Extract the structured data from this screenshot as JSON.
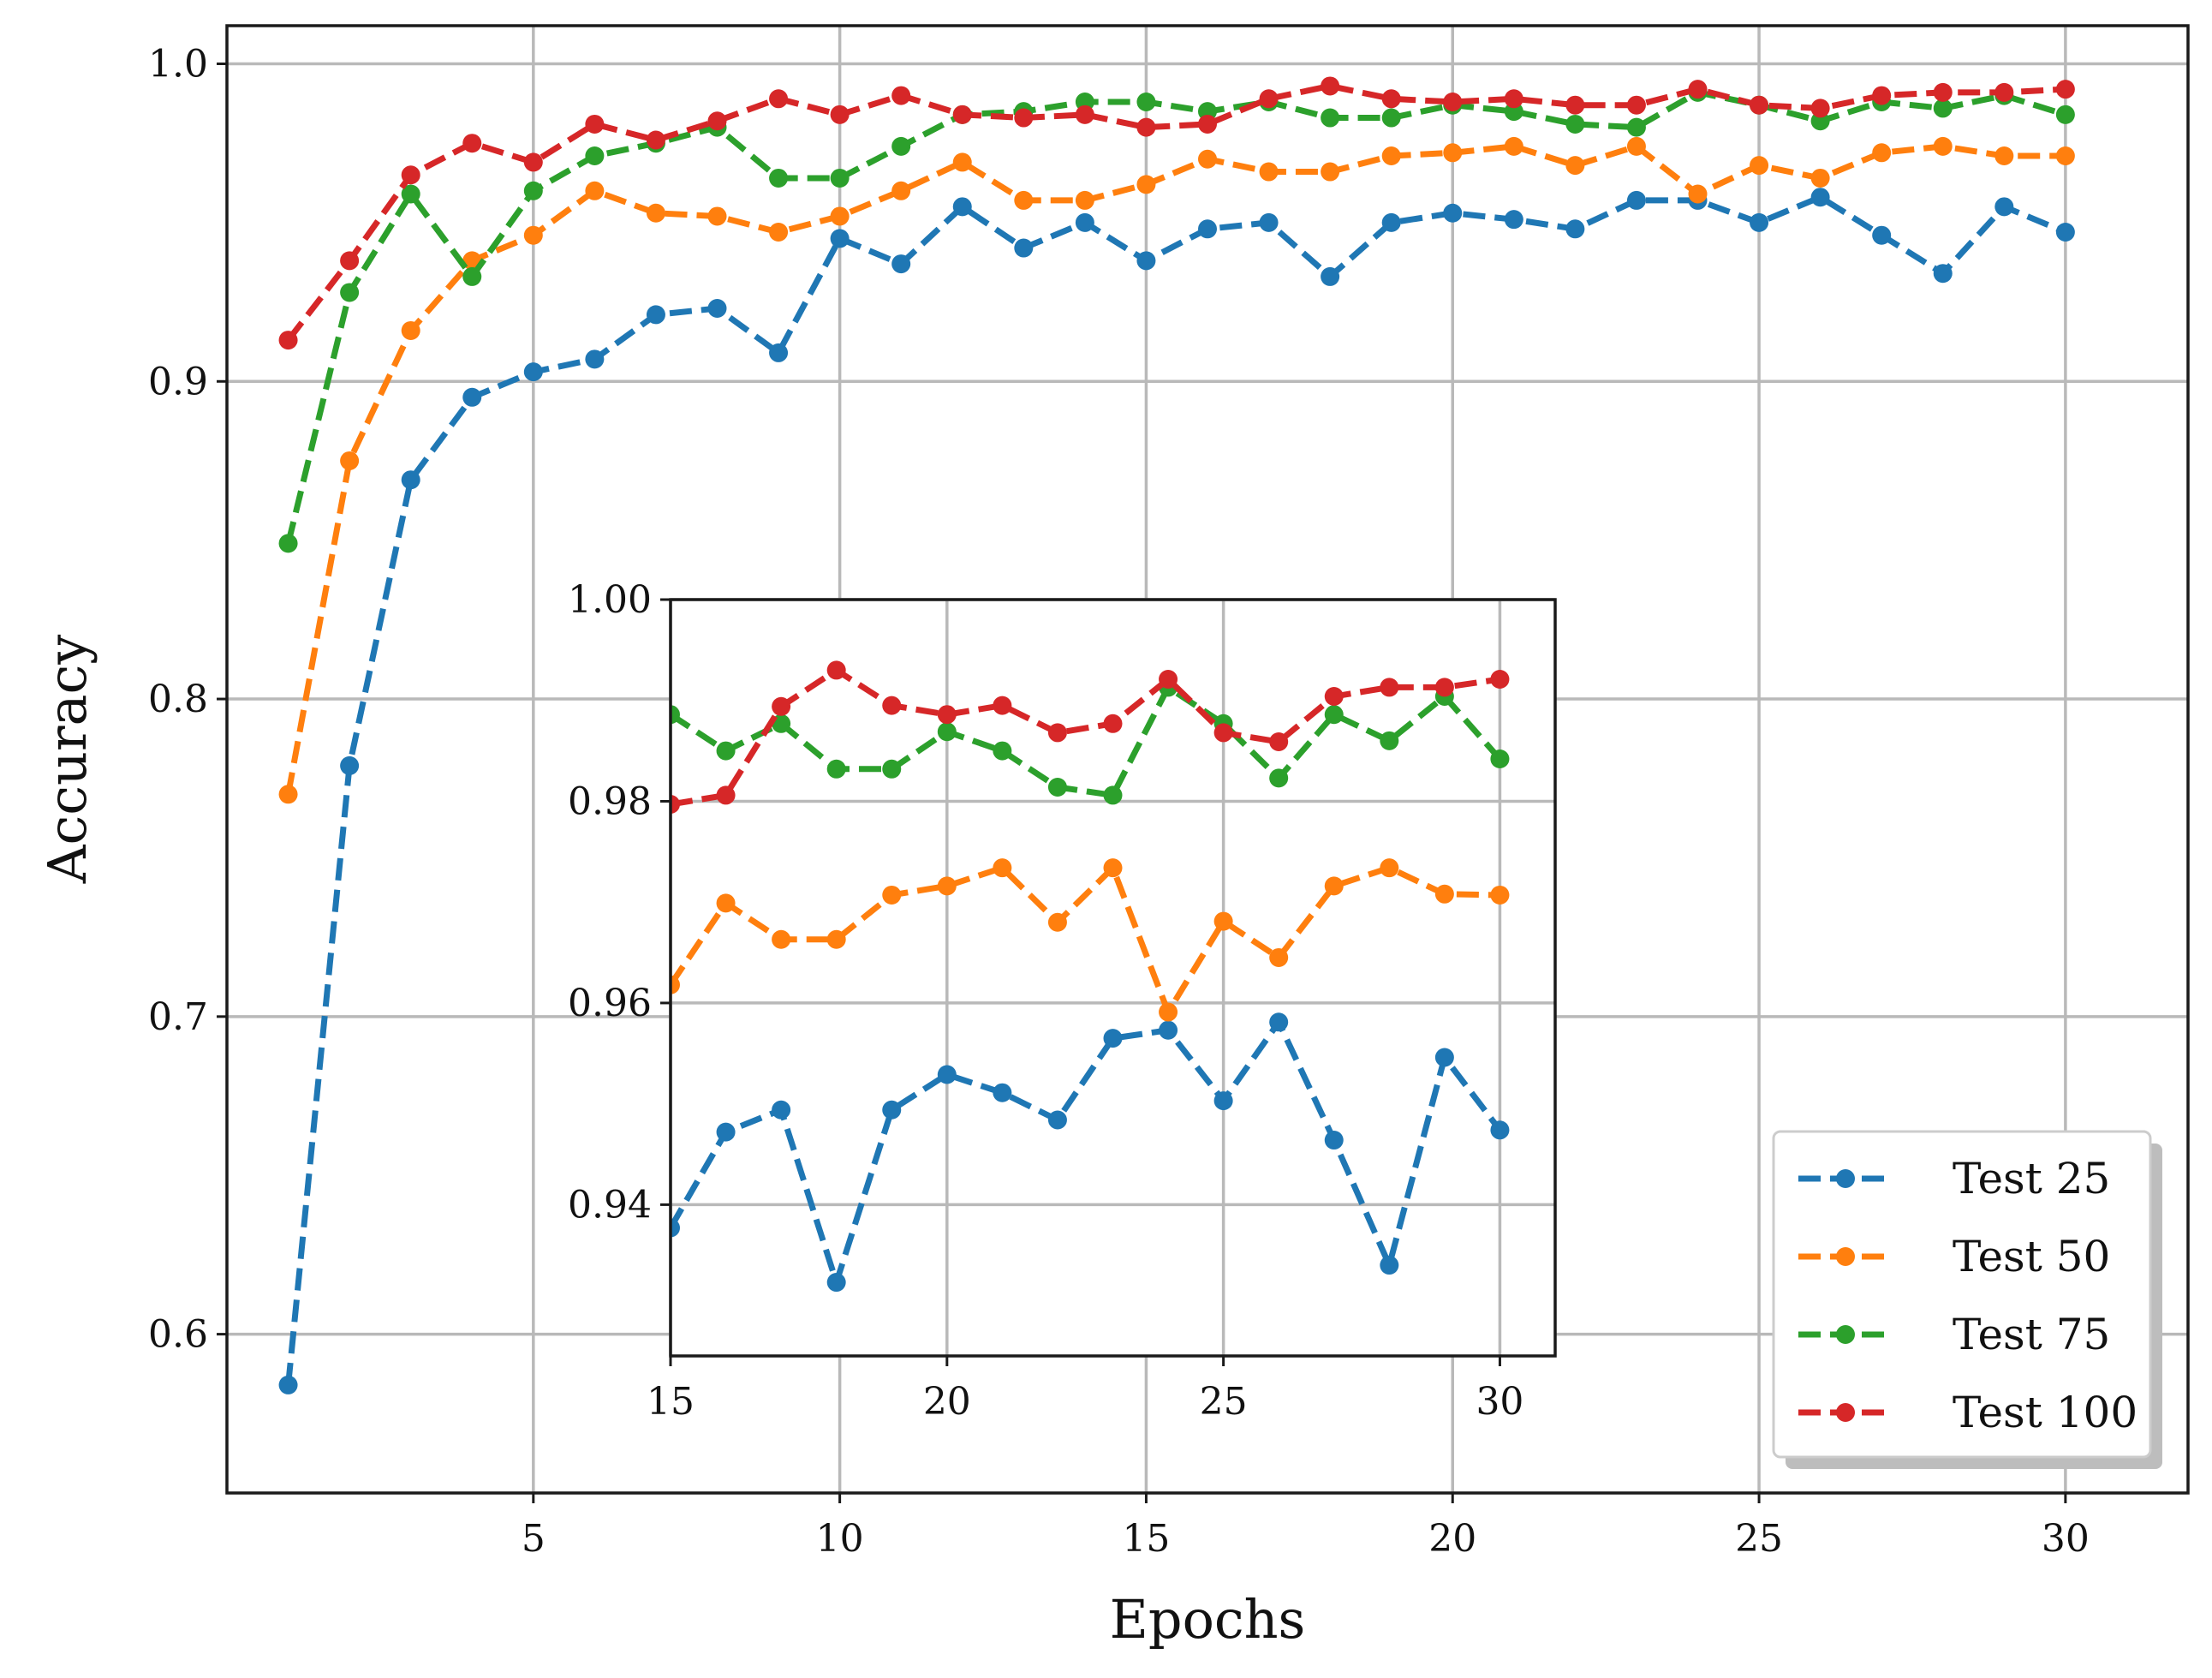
{
  "chart_data": [
    {
      "id": "main",
      "type": "line",
      "title": "",
      "xlabel": "Epochs",
      "ylabel": "Accuracy",
      "xlim": [
        0,
        32
      ],
      "ylim": [
        0.55,
        1.012
      ],
      "xticks": [
        5,
        10,
        15,
        20,
        25,
        30
      ],
      "xtick_labels": [
        "5",
        "10",
        "15",
        "20",
        "25",
        "30"
      ],
      "yticks": [
        0.6,
        0.7,
        0.8,
        0.9,
        1.0
      ],
      "ytick_labels": [
        "0.6",
        "0.7",
        "0.8",
        "0.9",
        "1.0"
      ],
      "grid": true,
      "legend_position": "bottom-right",
      "x": [
        1,
        2,
        3,
        4,
        5,
        6,
        7,
        8,
        9,
        10,
        11,
        12,
        13,
        14,
        15,
        16,
        17,
        18,
        19,
        20,
        21,
        22,
        23,
        24,
        25,
        26,
        27,
        28,
        29,
        30
      ],
      "series": [
        {
          "name": "Test 25",
          "color": "#1f77b4",
          "values": [
            0.584,
            0.779,
            0.869,
            0.895,
            0.903,
            0.907,
            0.921,
            0.923,
            0.909,
            0.945,
            0.937,
            0.955,
            0.942,
            0.95,
            0.938,
            0.948,
            0.95,
            0.933,
            0.95,
            0.953,
            0.951,
            0.948,
            0.957,
            0.957,
            0.95,
            0.958,
            0.946,
            0.934,
            0.955,
            0.947
          ]
        },
        {
          "name": "Test 50",
          "color": "#ff7f0e",
          "values": [
            0.77,
            0.875,
            0.916,
            0.938,
            0.946,
            0.96,
            0.953,
            0.952,
            0.947,
            0.952,
            0.96,
            0.969,
            0.957,
            0.957,
            0.962,
            0.97,
            0.966,
            0.966,
            0.971,
            0.972,
            0.974,
            0.968,
            0.974,
            0.959,
            0.968,
            0.964,
            0.972,
            0.974,
            0.971,
            0.971
          ]
        },
        {
          "name": "Test 75",
          "color": "#2ca02c",
          "values": [
            0.849,
            0.928,
            0.959,
            0.933,
            0.96,
            0.971,
            0.975,
            0.98,
            0.964,
            0.964,
            0.974,
            0.984,
            0.985,
            0.988,
            0.988,
            0.985,
            0.988,
            0.983,
            0.983,
            0.987,
            0.985,
            0.981,
            0.98,
            0.991,
            0.987,
            0.982,
            0.988,
            0.986,
            0.99,
            0.984
          ]
        },
        {
          "name": "Test 100",
          "color": "#d62728",
          "values": [
            0.913,
            0.938,
            0.965,
            0.975,
            0.969,
            0.981,
            0.976,
            0.982,
            0.989,
            0.984,
            0.99,
            0.984,
            0.983,
            0.984,
            0.98,
            0.981,
            0.989,
            0.993,
            0.989,
            0.988,
            0.989,
            0.987,
            0.987,
            0.992,
            0.987,
            0.986,
            0.99,
            0.991,
            0.991,
            0.992
          ]
        }
      ]
    },
    {
      "id": "inset",
      "type": "line",
      "title": "",
      "xlabel": "",
      "ylabel": "",
      "xlim": [
        15,
        31
      ],
      "ylim": [
        0.925,
        1.0
      ],
      "xticks": [
        15,
        20,
        25,
        30
      ],
      "xtick_labels": [
        "15",
        "20",
        "25",
        "30"
      ],
      "yticks": [
        0.94,
        0.96,
        0.98,
        1.0
      ],
      "ytick_labels": [
        "0.94",
        "0.96",
        "0.98",
        "1.00"
      ],
      "grid": true,
      "x": [
        15,
        16,
        17,
        18,
        19,
        20,
        21,
        22,
        23,
        24,
        25,
        26,
        27,
        28,
        29,
        30
      ],
      "series": [
        {
          "name": "Test 25",
          "color": "#1f77b4",
          "values": [
            0.9377,
            0.9472,
            0.9494,
            0.9323,
            0.9494,
            0.9529,
            0.9511,
            0.9484,
            0.9565,
            0.9573,
            0.9503,
            0.9581,
            0.9464,
            0.934,
            0.9546,
            0.9474
          ]
        },
        {
          "name": "Test 50",
          "color": "#ff7f0e",
          "values": [
            0.9618,
            0.9699,
            0.9663,
            0.9663,
            0.9707,
            0.9716,
            0.9734,
            0.968,
            0.9734,
            0.9591,
            0.9681,
            0.9645,
            0.9716,
            0.9734,
            0.9708,
            0.9707
          ]
        },
        {
          "name": "Test 75",
          "color": "#2ca02c",
          "values": [
            0.9886,
            0.985,
            0.9877,
            0.9832,
            0.9832,
            0.9869,
            0.985,
            0.9814,
            0.9806,
            0.9913,
            0.9877,
            0.9823,
            0.9886,
            0.986,
            0.9904,
            0.9842
          ]
        },
        {
          "name": "Test 100",
          "color": "#d62728",
          "values": [
            0.9797,
            0.9806,
            0.9894,
            0.993,
            0.9895,
            0.9886,
            0.9895,
            0.9868,
            0.9877,
            0.9921,
            0.9868,
            0.9859,
            0.9904,
            0.9913,
            0.9913,
            0.9921
          ]
        }
      ]
    }
  ]
}
